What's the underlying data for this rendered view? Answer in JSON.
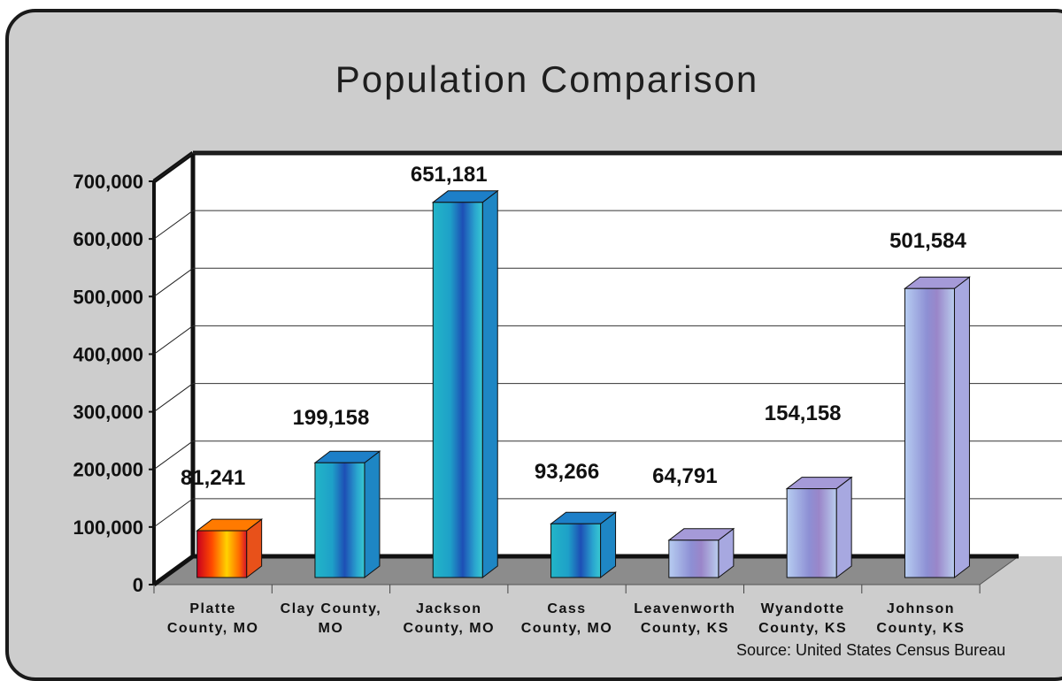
{
  "chart_data": {
    "type": "bar",
    "title": "Population Comparison",
    "source": "Source: United States Census Bureau",
    "categories": [
      [
        "Platte",
        "County, MO"
      ],
      [
        "Clay County,",
        "MO"
      ],
      [
        "Jackson",
        "County, MO"
      ],
      [
        "Cass",
        "County, MO"
      ],
      [
        "Leavenworth",
        "County, KS"
      ],
      [
        "Wyandotte",
        "County, KS"
      ],
      [
        "Johnson",
        "County, KS"
      ]
    ],
    "values": [
      81241,
      199158,
      651181,
      93266,
      64791,
      154158,
      501584
    ],
    "value_labels": [
      "81,241",
      "199,158",
      "651,181",
      "93,266",
      "64,791",
      "154,158",
      "501,584"
    ],
    "ylim": [
      0,
      700000
    ],
    "yticks": [
      0,
      100000,
      200000,
      300000,
      400000,
      500000,
      600000,
      700000
    ],
    "ytick_labels": [
      "0",
      "100,000",
      "200,000",
      "300,000",
      "400,000",
      "500,000",
      "600,000",
      "700,000"
    ],
    "xlabel": "",
    "ylabel": "",
    "grid": true,
    "legend": "none",
    "bar_colors": [
      "fire",
      "blue",
      "blue",
      "blue",
      "lavender",
      "lavender",
      "lavender"
    ]
  }
}
